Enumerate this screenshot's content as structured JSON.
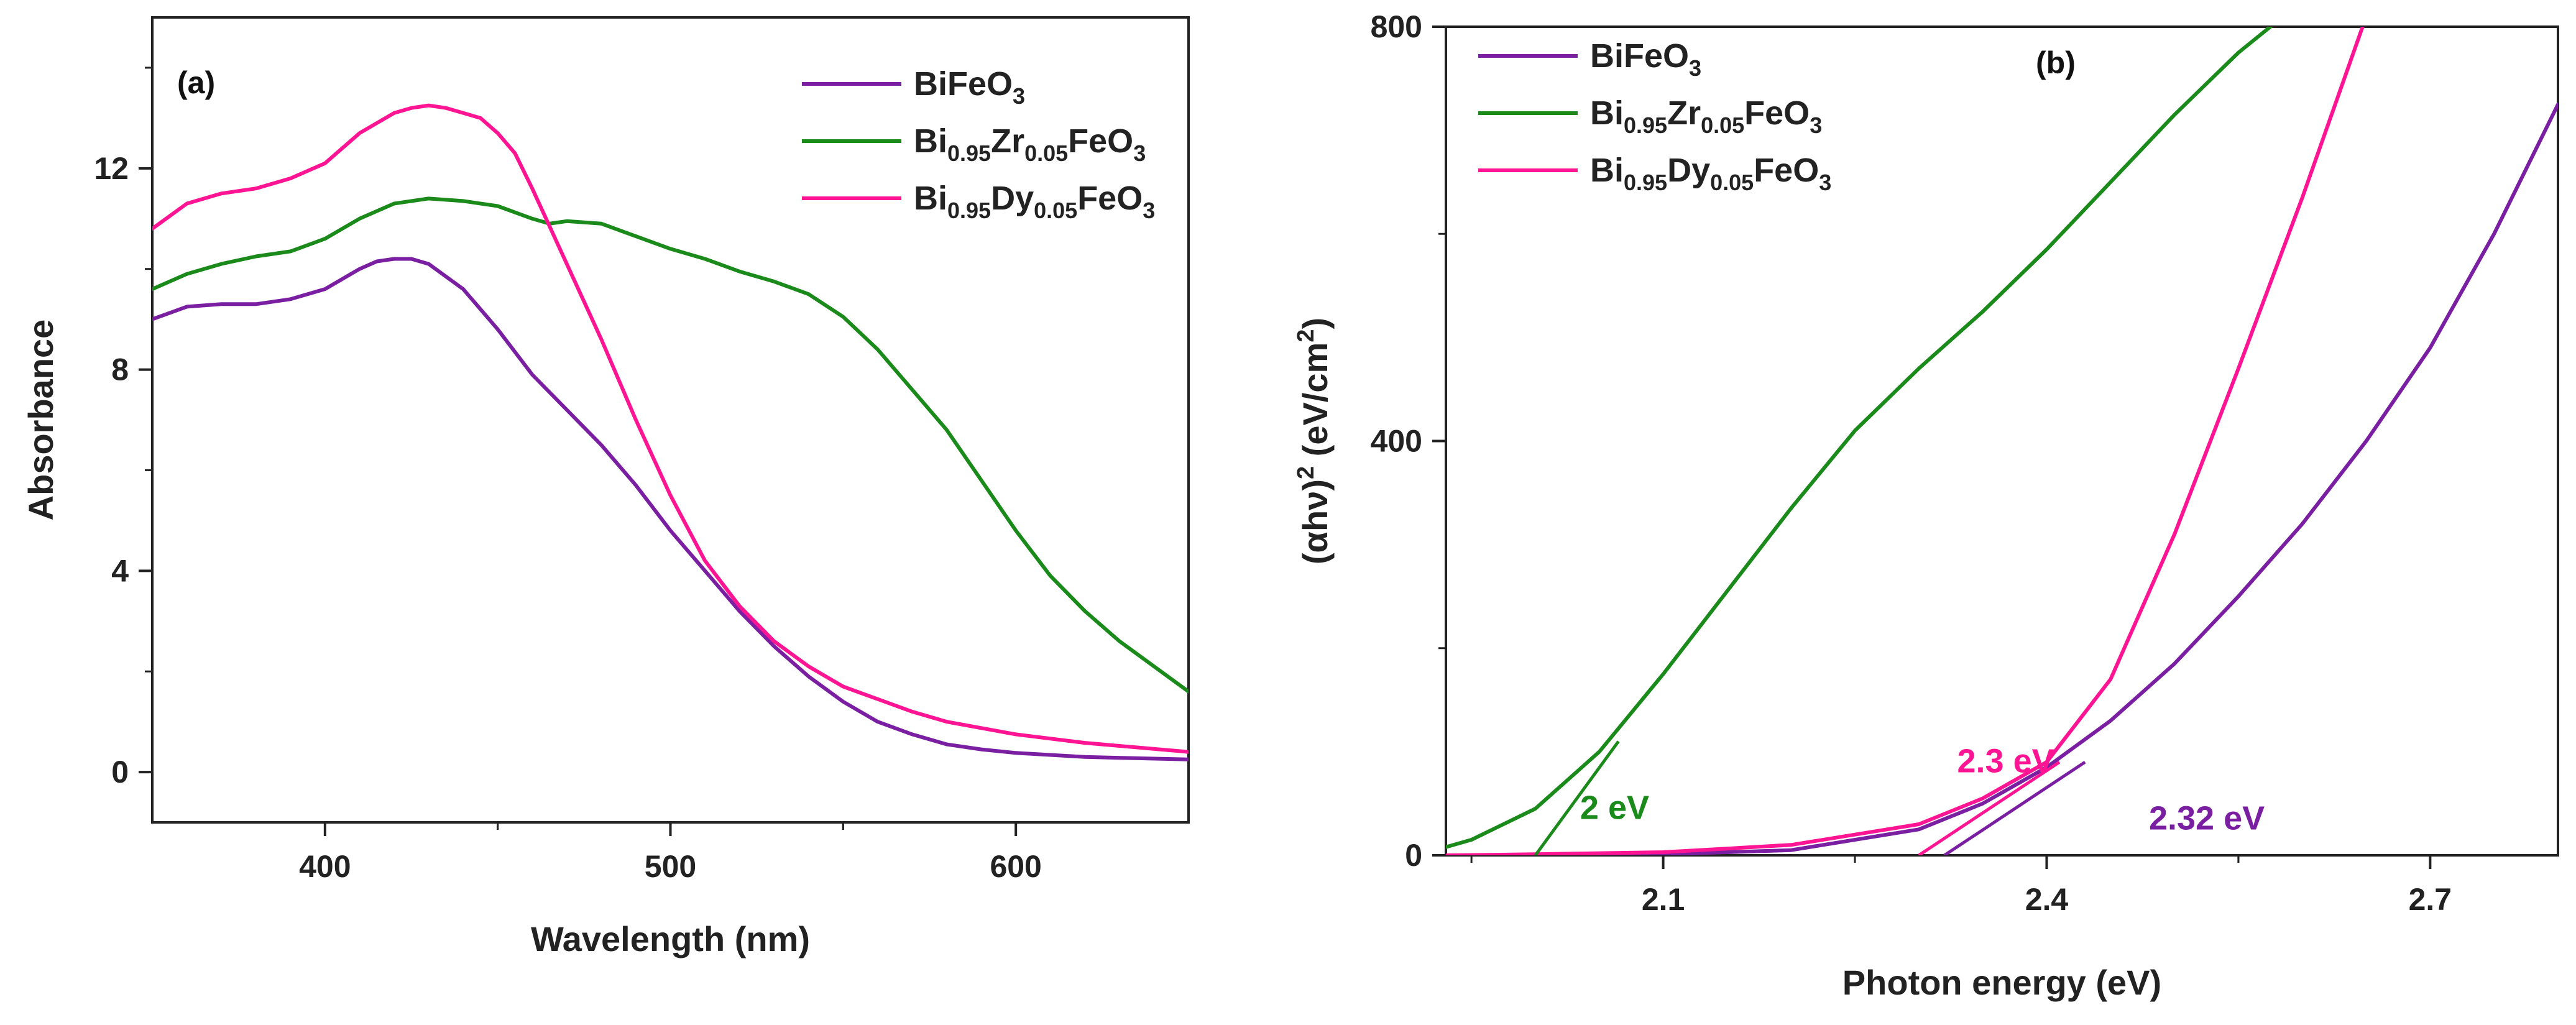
{
  "chart_data": [
    {
      "panel": "(a)",
      "type": "line",
      "xlabel": "Wavelength (nm)",
      "ylabel": "Absorbance",
      "xlim": [
        350,
        650
      ],
      "ylim": [
        -1,
        15
      ],
      "xticks": [
        400,
        500,
        600
      ],
      "xtick_labels": [
        "400",
        "500",
        "600"
      ],
      "yticks": [
        0,
        4,
        8,
        12
      ],
      "ytick_labels": [
        "0",
        "4",
        "8",
        "12"
      ],
      "legend": [
        {
          "parts": [
            {
              "t": "BiFeO",
              "s": "n"
            },
            {
              "t": "3",
              "s": "sub"
            }
          ],
          "color": "#7b1fa2"
        },
        {
          "parts": [
            {
              "t": "Bi",
              "s": "n"
            },
            {
              "t": "0.95",
              "s": "sub"
            },
            {
              "t": "Zr",
              "s": "n"
            },
            {
              "t": "0.05",
              "s": "sub"
            },
            {
              "t": "FeO",
              "s": "n"
            },
            {
              "t": "3",
              "s": "sub"
            }
          ],
          "color": "#1a8a1a"
        },
        {
          "parts": [
            {
              "t": "Bi",
              "s": "n"
            },
            {
              "t": "0.95",
              "s": "sub"
            },
            {
              "t": "Dy",
              "s": "n"
            },
            {
              "t": "0.05",
              "s": "sub"
            },
            {
              "t": "FeO",
              "s": "n"
            },
            {
              "t": "3",
              "s": "sub"
            }
          ],
          "color": "#ff1493"
        }
      ],
      "series": [
        {
          "name": "BiFeO3",
          "color": "#7b1fa2",
          "x": [
            350,
            360,
            370,
            380,
            390,
            400,
            410,
            415,
            420,
            425,
            430,
            440,
            450,
            460,
            470,
            480,
            490,
            500,
            510,
            520,
            530,
            540,
            550,
            560,
            570,
            580,
            590,
            600,
            620,
            650
          ],
          "y": [
            9.0,
            9.25,
            9.3,
            9.3,
            9.4,
            9.6,
            10.0,
            10.15,
            10.2,
            10.2,
            10.1,
            9.6,
            8.8,
            7.9,
            7.2,
            6.5,
            5.7,
            4.8,
            4.0,
            3.2,
            2.5,
            1.9,
            1.4,
            1.0,
            0.75,
            0.55,
            0.45,
            0.38,
            0.3,
            0.25
          ]
        },
        {
          "name": "Bi0.95Zr0.05FeO3",
          "color": "#1a8a1a",
          "x": [
            350,
            360,
            370,
            380,
            390,
            400,
            410,
            420,
            430,
            440,
            450,
            460,
            465,
            470,
            480,
            490,
            500,
            510,
            520,
            530,
            540,
            550,
            560,
            570,
            580,
            590,
            600,
            610,
            620,
            630,
            640,
            650
          ],
          "y": [
            9.6,
            9.9,
            10.1,
            10.25,
            10.35,
            10.6,
            11.0,
            11.3,
            11.4,
            11.35,
            11.25,
            11.0,
            10.9,
            10.95,
            10.9,
            10.65,
            10.4,
            10.2,
            9.95,
            9.75,
            9.5,
            9.05,
            8.4,
            7.6,
            6.8,
            5.8,
            4.8,
            3.9,
            3.2,
            2.6,
            2.1,
            1.6
          ]
        },
        {
          "name": "Bi0.95Dy0.05FeO3",
          "color": "#ff1493",
          "x": [
            350,
            360,
            370,
            380,
            390,
            400,
            410,
            420,
            425,
            430,
            435,
            440,
            445,
            450,
            455,
            460,
            470,
            480,
            490,
            500,
            510,
            520,
            530,
            540,
            550,
            560,
            570,
            580,
            600,
            620,
            650
          ],
          "y": [
            10.8,
            11.3,
            11.5,
            11.6,
            11.8,
            12.1,
            12.7,
            13.1,
            13.2,
            13.25,
            13.2,
            13.1,
            13.0,
            12.7,
            12.3,
            11.6,
            10.1,
            8.6,
            7.0,
            5.5,
            4.2,
            3.3,
            2.6,
            2.1,
            1.7,
            1.45,
            1.2,
            1.0,
            0.75,
            0.58,
            0.4
          ]
        }
      ]
    },
    {
      "panel": "(b)",
      "type": "line",
      "xlabel": "Photon energy (eV)",
      "ylabel": "(αhν)² (eV/cm²)",
      "ylabel_parts": {
        "main": "(αhν)",
        "sup1": "2",
        "mid": " (eV/cm",
        "sup2": "2",
        "end": ")"
      },
      "xlim": [
        1.93,
        2.8
      ],
      "ylim": [
        0,
        800
      ],
      "xticks": [
        2.1,
        2.4,
        2.7
      ],
      "xtick_labels": [
        "2.1",
        "2.4",
        "2.7"
      ],
      "yticks": [
        0,
        400,
        800
      ],
      "ytick_labels": [
        "0",
        "400",
        "800"
      ],
      "legend": [
        {
          "parts": [
            {
              "t": "BiFeO",
              "s": "n"
            },
            {
              "t": "3",
              "s": "sub"
            }
          ],
          "color": "#7b1fa2"
        },
        {
          "parts": [
            {
              "t": "Bi",
              "s": "n"
            },
            {
              "t": "0.95",
              "s": "sub"
            },
            {
              "t": "Zr",
              "s": "n"
            },
            {
              "t": "0.05",
              "s": "sub"
            },
            {
              "t": "FeO",
              "s": "n"
            },
            {
              "t": "3",
              "s": "sub"
            }
          ],
          "color": "#1a8a1a"
        },
        {
          "parts": [
            {
              "t": "Bi",
              "s": "n"
            },
            {
              "t": "0.95",
              "s": "sub"
            },
            {
              "t": "Dy",
              "s": "n"
            },
            {
              "t": "0.05",
              "s": "sub"
            },
            {
              "t": "FeO",
              "s": "n"
            },
            {
              "t": "3",
              "s": "sub"
            }
          ],
          "color": "#ff1493"
        }
      ],
      "series": [
        {
          "name": "BiFeO3",
          "color": "#7b1fa2",
          "x": [
            1.93,
            2.0,
            2.1,
            2.2,
            2.3,
            2.35,
            2.4,
            2.45,
            2.5,
            2.55,
            2.6,
            2.65,
            2.7,
            2.75,
            2.8
          ],
          "y": [
            0,
            0,
            1,
            5,
            25,
            50,
            85,
            130,
            185,
            250,
            320,
            400,
            490,
            600,
            725
          ]
        },
        {
          "name": "Bi0.95Zr0.05FeO3",
          "color": "#1a8a1a",
          "x": [
            1.93,
            1.95,
            2.0,
            2.05,
            2.1,
            2.15,
            2.2,
            2.25,
            2.3,
            2.35,
            2.4,
            2.45,
            2.5,
            2.55,
            2.58
          ],
          "y": [
            8,
            15,
            45,
            100,
            175,
            255,
            335,
            410,
            470,
            525,
            585,
            650,
            715,
            775,
            805
          ]
        },
        {
          "name": "Bi0.95Dy0.05FeO3",
          "color": "#ff1493",
          "x": [
            1.93,
            2.0,
            2.1,
            2.2,
            2.3,
            2.35,
            2.4,
            2.45,
            2.5,
            2.55,
            2.6,
            2.65
          ],
          "y": [
            0,
            1,
            3,
            10,
            30,
            55,
            90,
            170,
            310,
            470,
            635,
            810
          ]
        }
      ],
      "tangent_lines": [
        {
          "color": "#1a8a1a",
          "x": [
            2.0,
            2.065
          ],
          "y": [
            0,
            110
          ]
        },
        {
          "color": "#ff1493",
          "x": [
            2.3,
            2.41
          ],
          "y": [
            0,
            90
          ]
        },
        {
          "color": "#7b1fa2",
          "x": [
            2.32,
            2.43
          ],
          "y": [
            0,
            90
          ]
        }
      ],
      "annotations": [
        {
          "text": "2 eV",
          "color": "#1a8a1a",
          "x": 2.035,
          "y": 35
        },
        {
          "text": "2.3 eV",
          "color": "#ff1493",
          "x": 2.33,
          "y": 80
        },
        {
          "text": "2.32 eV",
          "color": "#7b1fa2",
          "x": 2.48,
          "y": 25
        }
      ]
    }
  ]
}
